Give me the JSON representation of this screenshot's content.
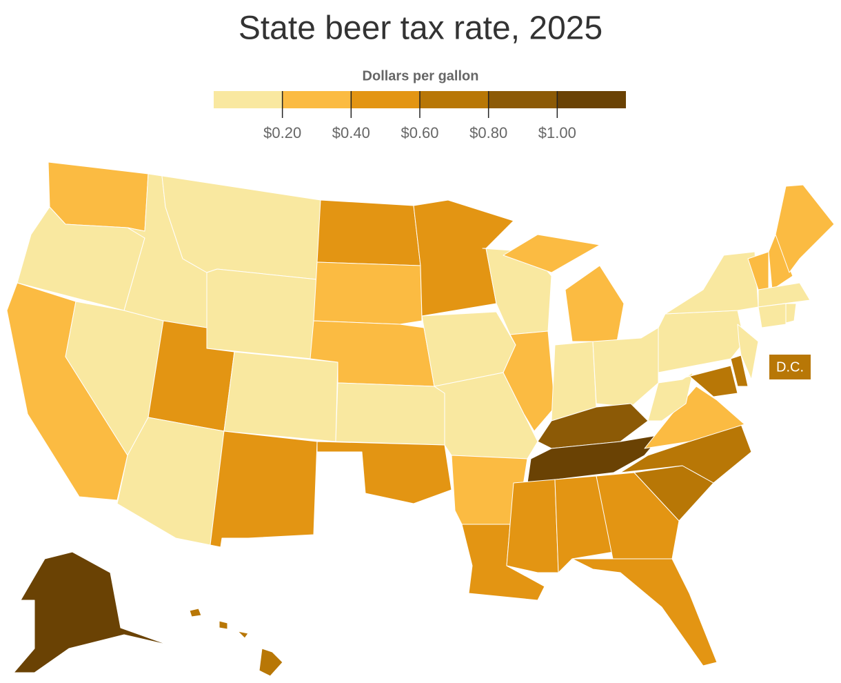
{
  "map": {
    "title": "State beer tax rate, 2025",
    "legend": {
      "title": "Dollars per gallon",
      "lim": [
        0,
        1.2
      ],
      "ticks": [
        {
          "value": 0.2,
          "label": "$0.20"
        },
        {
          "value": 0.4,
          "label": "$0.40"
        },
        {
          "value": 0.6,
          "label": "$0.60"
        },
        {
          "value": 0.8,
          "label": "$0.80"
        },
        {
          "value": 1.0,
          "label": "$1.00"
        }
      ],
      "colors": [
        "#f9e8a0",
        "#fbbb42",
        "#e39513",
        "#b87706",
        "#8c5a06",
        "#6a4204"
      ]
    },
    "values": [
      0.3,
      0.1,
      0.3,
      0.1,
      0.1,
      0.1,
      0.1,
      0.5,
      0.1,
      0.1,
      0.5,
      0.5,
      0.3,
      0.3,
      0.1,
      0.5,
      0.5,
      0.1,
      0.1,
      0.3,
      0.5,
      0.1,
      0.3,
      0.3,
      0.1,
      0.1,
      0.9,
      1.1,
      0.5,
      0.5,
      0.5,
      0.5,
      0.7,
      0.7,
      0.3,
      0.1,
      0.1,
      0.1,
      0.7,
      0.7,
      0.1,
      0.3,
      0.3,
      0.3,
      0.1,
      0.1,
      0.1,
      1.1,
      0.7
    ],
    "dc_label": "D.C.",
    "dc_value": 0.7
  }
}
